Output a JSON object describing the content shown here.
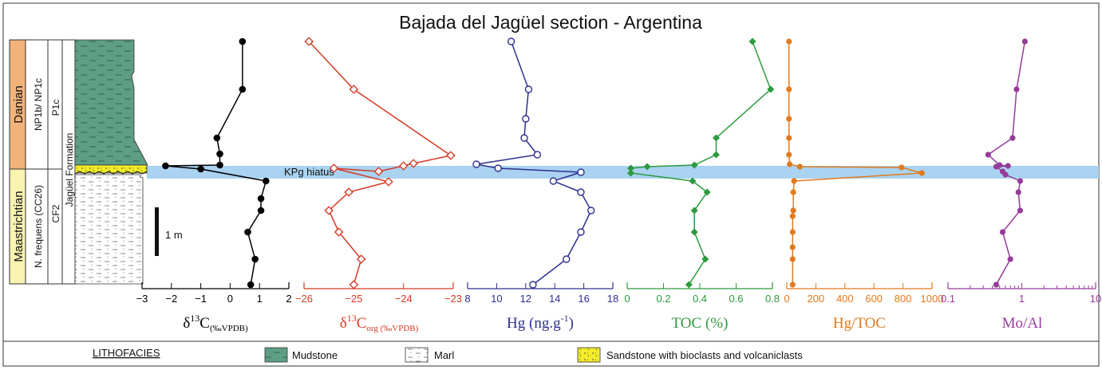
{
  "title": "Bajada del Jagüel section - Argentina",
  "stratigraphy": {
    "stages": [
      "Danian",
      "Maastrichtian"
    ],
    "nannofossil_zones": [
      "NP1b/ NP1c",
      "N. frequens (CC26)"
    ],
    "foram_zones": [
      "P1c",
      "CF2"
    ],
    "formation": "Jagüel Formation",
    "scale_bar_label": "1 m",
    "hiatus_label": "KPg  hiatus"
  },
  "colors": {
    "danian": "#F2B37A",
    "maastrichtian": "#F7F3B0",
    "hiatus_band": "#A9D3F0",
    "mudstone": "#5E9E84",
    "sandstone": "#F3EC2A",
    "d13c": "#000000",
    "d13corg": "#D53A26",
    "hg": "#2E2F8F",
    "toc": "#2C9A3D",
    "hgtoc": "#E07A1E",
    "moal": "#943C98"
  },
  "chart_data": [
    {
      "type": "line",
      "series": [
        {
          "name": "δ13C",
          "marker": "filled-circle"
        }
      ],
      "axis_label": {
        "main": "δ",
        "sup": "13",
        "rest": "C",
        "sub": "(‰VPDB)"
      },
      "xlim": [
        -3,
        2
      ],
      "ticks": [
        -3,
        -2,
        -1,
        0,
        1,
        2
      ],
      "x": [
        0.42,
        0.42,
        -0.45,
        -0.35,
        -0.35,
        -2.2,
        -1.0,
        1.22,
        1.05,
        1.05,
        0.6,
        0.85,
        0.7
      ],
      "y": [
        52,
        112,
        173,
        193,
        207,
        208,
        212,
        227,
        249,
        264,
        291,
        325,
        357
      ]
    },
    {
      "type": "line",
      "series": [
        {
          "name": "δ13Corg",
          "marker": "open-diamond"
        }
      ],
      "axis_label": {
        "main": "δ",
        "sup": "13",
        "rest": "C",
        "sub": "org (‰VPDB)"
      },
      "xlim": [
        -26,
        -23
      ],
      "ticks": [
        -26,
        -25,
        -24,
        -23
      ],
      "x": [
        -25.9,
        -25.0,
        -23.05,
        -23.8,
        -24.0,
        -24.5,
        -25.4,
        -24.3,
        -25.1,
        -25.5,
        -25.3,
        -24.85,
        -25.0
      ],
      "y": [
        52,
        112,
        195,
        205,
        208,
        215,
        211,
        228,
        241,
        264,
        291,
        325,
        357
      ]
    },
    {
      "type": "line",
      "series": [
        {
          "name": "Hg",
          "marker": "open-circle"
        }
      ],
      "axis_label": {
        "main": "Hg (ng.g",
        "sup": "-1",
        "rest": ")",
        "sub": ""
      },
      "xlim": [
        8,
        18
      ],
      "ticks": [
        8,
        10,
        12,
        14,
        16,
        18
      ],
      "x": [
        11.0,
        12.2,
        12.0,
        11.9,
        12.8,
        8.6,
        10.1,
        15.8,
        13.9,
        15.8,
        16.5,
        15.8,
        14.8,
        12.5
      ],
      "y": [
        52,
        112,
        149,
        173,
        194,
        206,
        211,
        216,
        227,
        241,
        264,
        291,
        325,
        357
      ]
    },
    {
      "type": "line",
      "series": [
        {
          "name": "TOC",
          "marker": "filled-diamond"
        }
      ],
      "axis_label": {
        "main": "TOC (%)",
        "sup": "",
        "rest": "",
        "sub": ""
      },
      "xlim": [
        0,
        0.8
      ],
      "ticks": [
        "0",
        "0.2",
        "0.4",
        "0.6",
        "0.8"
      ],
      "x": [
        0.69,
        0.79,
        0.49,
        0.49,
        0.37,
        0.11,
        0.02,
        0.02,
        0.36,
        0.44,
        0.37,
        0.37,
        0.43,
        0.34
      ],
      "y": [
        52,
        112,
        173,
        194,
        207,
        209,
        211,
        217,
        227,
        241,
        264,
        291,
        325,
        357
      ]
    },
    {
      "type": "line",
      "series": [
        {
          "name": "Hg/TOC",
          "marker": "filled-circle"
        }
      ],
      "axis_label": {
        "main": "Hg/TOC",
        "sup": "",
        "rest": "",
        "sub": ""
      },
      "xlim": [
        0,
        1000
      ],
      "ticks": [
        "0",
        "200",
        "400",
        "600",
        "800",
        "1000"
      ],
      "x": [
        15,
        15,
        15,
        15,
        15,
        20,
        90,
        790,
        930,
        50,
        45,
        45,
        40,
        40,
        40,
        40,
        40
      ],
      "y": [
        52,
        112,
        149,
        173,
        194,
        206,
        209,
        210,
        217,
        227,
        241,
        264,
        271,
        291,
        310,
        325,
        357
      ]
    },
    {
      "type": "line",
      "series": [
        {
          "name": "Mo/Al",
          "marker": "filled-circle"
        }
      ],
      "axis_label": {
        "main": "Mo/Al",
        "sup": "",
        "rest": "",
        "sub": ""
      },
      "xscale": "log",
      "xlim": [
        0.1,
        10
      ],
      "ticks": [
        "0.1",
        "1",
        "10"
      ],
      "x": [
        1.1,
        0.85,
        0.75,
        0.35,
        0.5,
        0.65,
        0.45,
        0.55,
        0.6,
        0.95,
        0.9,
        0.95,
        0.55,
        0.7,
        0.45
      ],
      "y": [
        52,
        112,
        173,
        194,
        207,
        208,
        209,
        215,
        219,
        227,
        241,
        264,
        291,
        325,
        357
      ]
    }
  ],
  "legend": {
    "heading": "LITHOFACIES",
    "items": [
      "Mudstone",
      "Marl",
      "Sandstone with bioclasts and volcaniclasts"
    ]
  }
}
